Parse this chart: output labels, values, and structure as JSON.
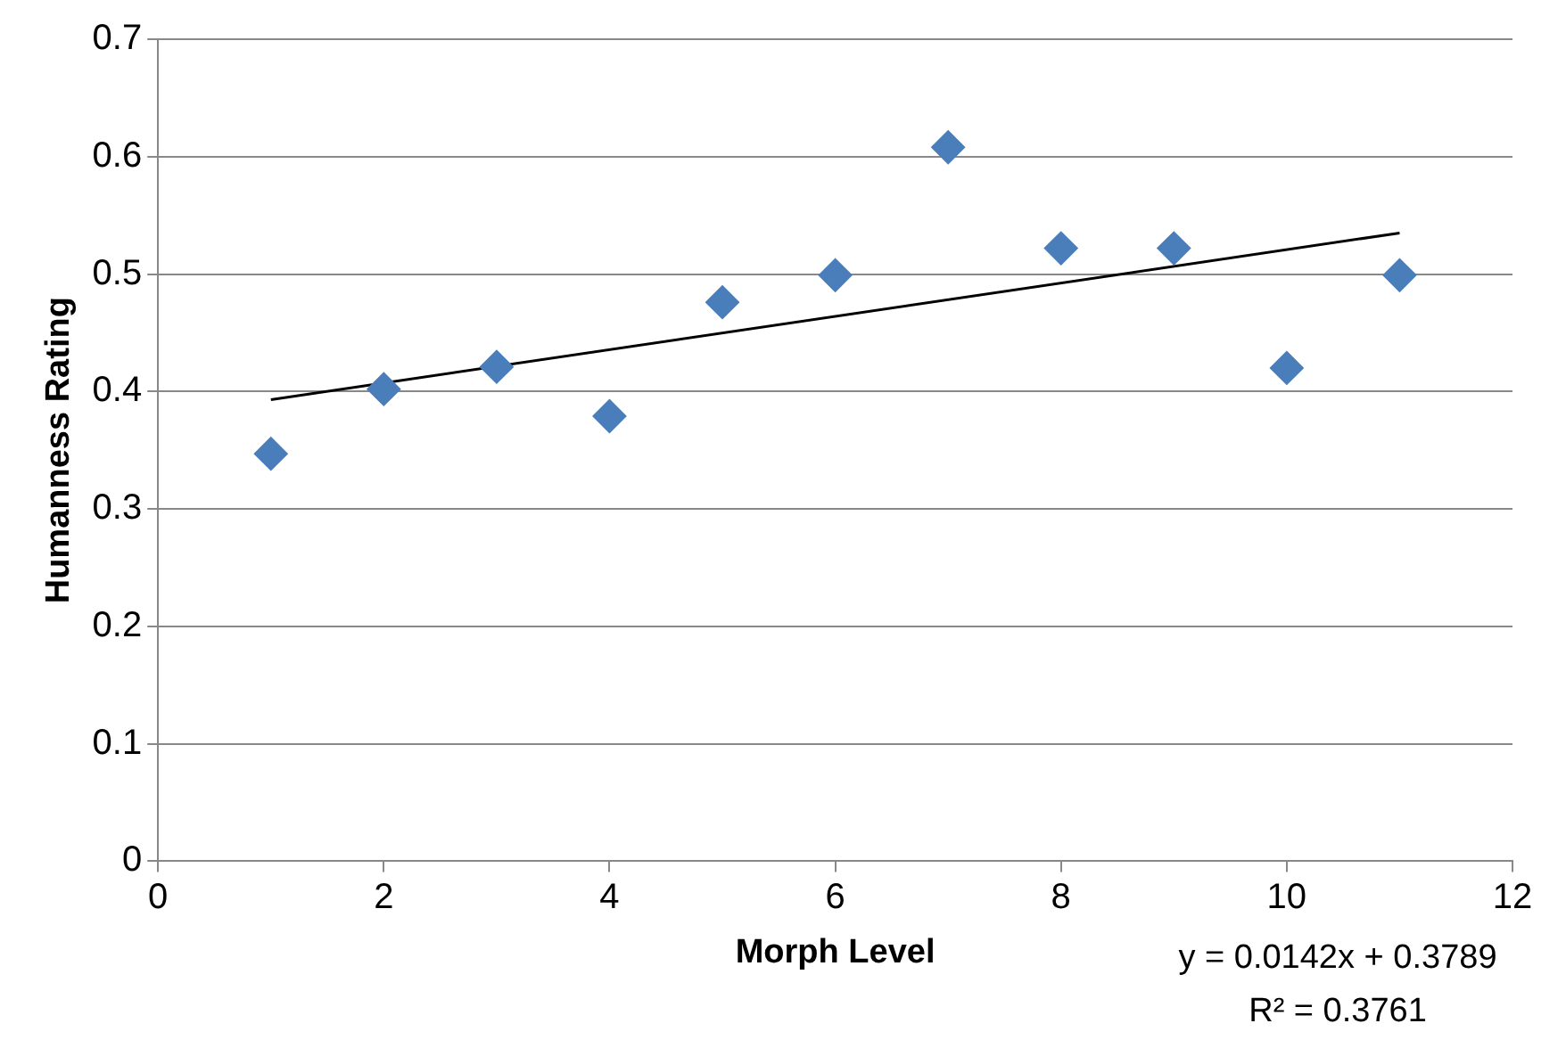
{
  "chart_data": {
    "type": "scatter",
    "xlabel": "Morph Level",
    "ylabel": "Humanness Rating",
    "xlim": [
      0,
      12
    ],
    "xticks": [
      0,
      2,
      4,
      6,
      8,
      10,
      12
    ],
    "ylim": [
      0,
      0.7
    ],
    "yticks": [
      0,
      0.1,
      0.2,
      0.3,
      0.4,
      0.5,
      0.6,
      0.7
    ],
    "grid": "y",
    "legend": false,
    "marker": "diamond",
    "series": [
      {
        "color": "#4a7ebb",
        "x": [
          1,
          2,
          3,
          4,
          5,
          6,
          7,
          8,
          9,
          10,
          11
        ],
        "values": [
          0.347,
          0.402,
          0.421,
          0.379,
          0.476,
          0.499,
          0.608,
          0.522,
          0.522,
          0.42,
          0.499
        ]
      },
      {
        "type": "line",
        "color": "#000000",
        "marker": "none",
        "x": [
          1,
          11
        ],
        "values": [
          0.393,
          0.535
        ]
      }
    ],
    "annotations": [
      "y = 0.0142x + 0.3789",
      "R² = 0.3761"
    ]
  }
}
